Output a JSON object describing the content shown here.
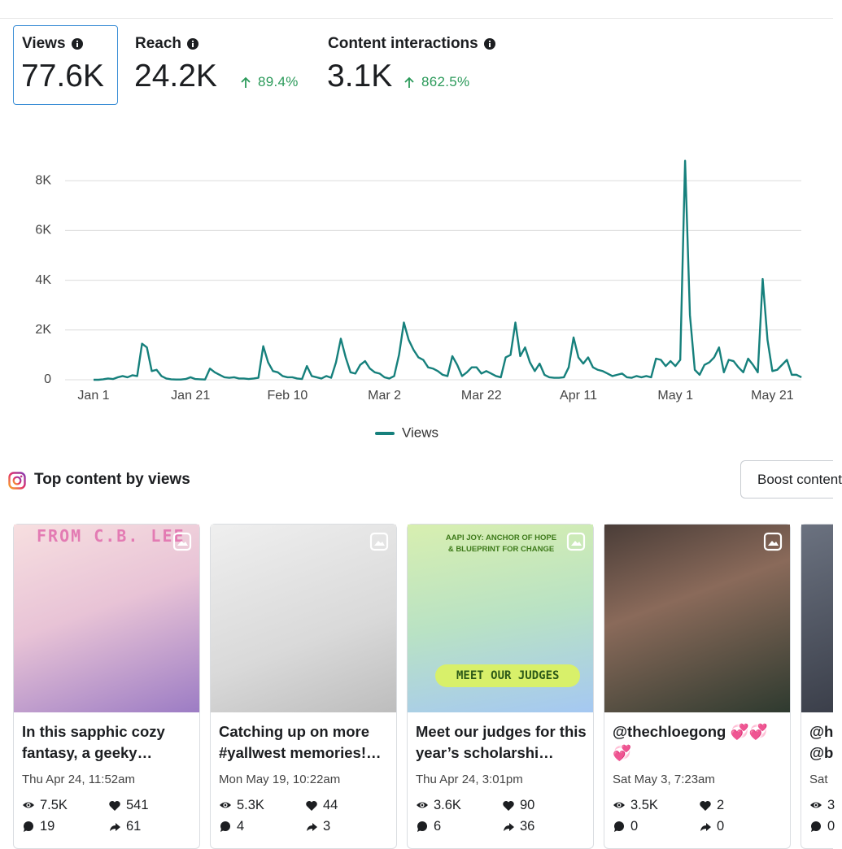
{
  "metrics": [
    {
      "label": "Views",
      "value": "77.6K"
    },
    {
      "label": "Reach",
      "value": "24.2K",
      "change": "89.4%"
    },
    {
      "label": "Content interactions",
      "value": "3.1K",
      "change": "862.5%"
    }
  ],
  "chart_data": {
    "type": "line",
    "categories": [
      "Jan 1",
      null,
      null,
      null,
      null,
      null,
      null,
      null,
      null,
      null,
      null,
      null,
      null,
      null,
      null,
      null,
      null,
      null,
      null,
      null,
      "Jan 21",
      null,
      null,
      null,
      null,
      null,
      null,
      null,
      null,
      null,
      null,
      null,
      null,
      null,
      null,
      null,
      null,
      null,
      null,
      null,
      "Feb 10",
      null,
      null,
      null,
      null,
      null,
      null,
      null,
      null,
      null,
      null,
      null,
      null,
      null,
      null,
      null,
      null,
      null,
      null,
      null,
      "Mar 2",
      null,
      null,
      null,
      null,
      null,
      null,
      null,
      null,
      null,
      null,
      null,
      null,
      null,
      null,
      null,
      null,
      null,
      null,
      null,
      "Mar 22",
      null,
      null,
      null,
      null,
      null,
      null,
      null,
      null,
      null,
      null,
      null,
      null,
      null,
      null,
      null,
      null,
      null,
      null,
      null,
      "Apr 11",
      null,
      null,
      null,
      null,
      null,
      null,
      null,
      null,
      null,
      null,
      null,
      null,
      null,
      null,
      null,
      null,
      null,
      null,
      null,
      "May 1",
      null,
      null,
      null,
      null,
      null,
      null,
      null,
      null,
      null,
      null,
      null,
      null,
      null,
      null,
      null,
      null,
      null,
      null,
      null,
      "May 21",
      null,
      null,
      null,
      null,
      null,
      null
    ],
    "series": [
      {
        "name": "Views",
        "color": "#16807c",
        "values": [
          0,
          0,
          20,
          50,
          30,
          100,
          150,
          100,
          180,
          150,
          1450,
          1300,
          350,
          400,
          150,
          50,
          20,
          10,
          10,
          30,
          100,
          30,
          20,
          10,
          450,
          300,
          200,
          100,
          80,
          100,
          50,
          50,
          30,
          50,
          80,
          1350,
          700,
          350,
          300,
          150,
          100,
          100,
          50,
          30,
          550,
          150,
          100,
          50,
          150,
          80,
          700,
          1650,
          900,
          300,
          250,
          600,
          750,
          450,
          300,
          250,
          100,
          50,
          150,
          1000,
          2300,
          1600,
          1200,
          900,
          800,
          500,
          450,
          350,
          200,
          150,
          950,
          600,
          150,
          300,
          500,
          500,
          250,
          350,
          250,
          150,
          100,
          900,
          1000,
          2300,
          950,
          1300,
          700,
          350,
          650,
          200,
          100,
          80,
          80,
          100,
          500,
          1700,
          900,
          650,
          900,
          500,
          400,
          350,
          250,
          150,
          200,
          250,
          100,
          80,
          150,
          100,
          150,
          100,
          850,
          800,
          550,
          750,
          550,
          800,
          8800,
          2600,
          400,
          200,
          600,
          700,
          900,
          1300,
          300,
          800,
          750,
          500,
          300,
          850,
          600,
          300,
          4050,
          1600,
          350,
          400,
          600,
          800,
          200,
          200,
          100
        ]
      }
    ],
    "ylim": [
      0,
      9000
    ],
    "yticks": [
      0,
      {
        "value": 2000,
        "label": "2K"
      },
      {
        "value": 4000,
        "label": "4K"
      },
      {
        "value": 6000,
        "label": "6K"
      },
      {
        "value": 8000,
        "label": "8K"
      }
    ],
    "grid": true,
    "legend": "bottom"
  },
  "top_content": {
    "title": "Top content by views",
    "button": "Boost content",
    "posts": [
      {
        "title": "In this sapphic cozy fantasy, a geeky…",
        "date": "Thu Apr 24, 11:52am",
        "views": "7.5K",
        "likes": "541",
        "comments": "19",
        "shares": "61",
        "image_texts": [
          "FROM C.B. LEE"
        ]
      },
      {
        "title": "Catching up on more #yallwest memories!…",
        "date": "Mon May 19, 10:22am",
        "views": "5.3K",
        "likes": "44",
        "comments": "4",
        "shares": "3"
      },
      {
        "title": "Meet our judges for this year’s scholarshi…",
        "date": "Thu Apr 24, 3:01pm",
        "views": "3.6K",
        "likes": "90",
        "comments": "6",
        "shares": "36",
        "image_texts": [
          "AAPI JOY: ANCHOR OF HOPE & BLUEPRINT FOR CHANGE",
          "MEET OUR JUDGES"
        ]
      },
      {
        "title": "@thechloegong 💞💞💞",
        "date": "Sat May 3, 7:23am",
        "views": "3.5K",
        "likes": "2",
        "comments": "0",
        "shares": "0"
      },
      {
        "title": "@h @b",
        "date": "Sat",
        "views": "3",
        "comments": "0"
      }
    ]
  }
}
